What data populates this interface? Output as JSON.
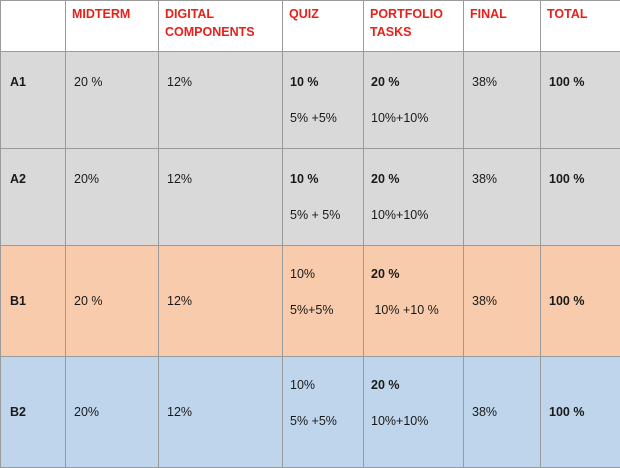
{
  "headers": [
    "",
    "MIDTERM",
    "DIGITAL COMPONENTS",
    "QUIZ",
    "PORTFOLIO TASKS",
    "FINAL",
    "TOTAL"
  ],
  "rows": [
    {
      "level": "A1",
      "midterm": "20 %",
      "digital": "12%",
      "quiz_main": "10 %",
      "quiz_split": "5% +5%",
      "portfolio_main": "20 %",
      "portfolio_split": "10%+10%",
      "final": "38%",
      "total": "100 %"
    },
    {
      "level": "A2",
      "midterm": "20%",
      "digital": "12%",
      "quiz_main": "10 %",
      "quiz_split": "5% + 5%",
      "portfolio_main": "20 %",
      "portfolio_split": "10%+10%",
      "final": "38%",
      "total": "100 %"
    },
    {
      "level": "B1",
      "midterm": "20 %",
      "digital": "12%",
      "quiz_main": "10%",
      "quiz_split": "5%+5%",
      "portfolio_main": "20 %",
      "portfolio_split": " 10% +10 %",
      "final": "38%",
      "total": "100 %"
    },
    {
      "level": "B2",
      "midterm": "20%",
      "digital": "12%",
      "quiz_main": "10%",
      "quiz_split": "5% +5%",
      "portfolio_main": "20 %",
      "portfolio_split": "10%+10%",
      "final": "38%",
      "total": "100 %"
    }
  ],
  "colors": {
    "header_text": "#e8201a",
    "a_rows": "#d9d9d9",
    "b1_row": "#f7cbab",
    "b2_row": "#bed5ec",
    "border": "#9a9a9a"
  }
}
